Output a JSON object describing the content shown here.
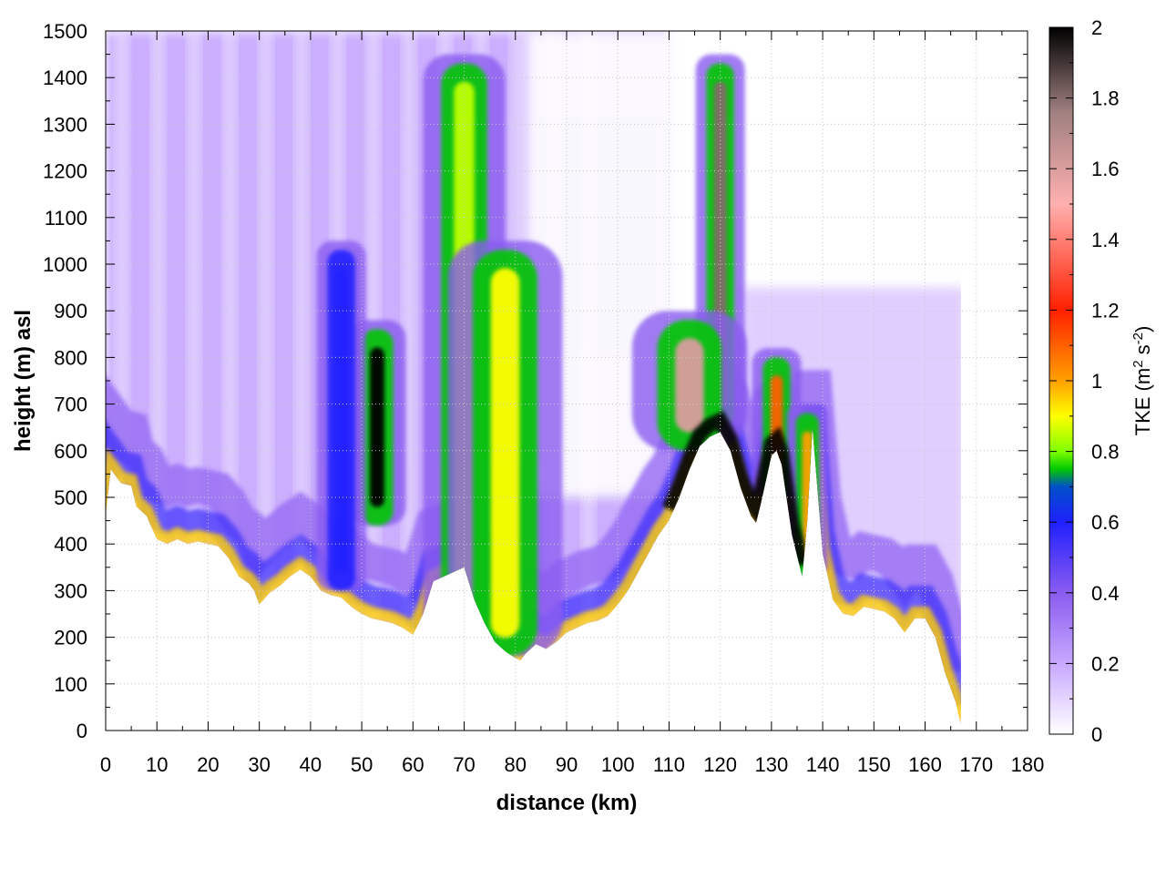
{
  "chart_data": {
    "type": "heatmap",
    "title": "",
    "xlabel": "distance (km)",
    "ylabel": "height (m) asl",
    "xlim": [
      0,
      180
    ],
    "ylim": [
      0,
      1500
    ],
    "xticks": [
      "0",
      "10",
      "20",
      "30",
      "40",
      "50",
      "60",
      "70",
      "80",
      "90",
      "100",
      "110",
      "120",
      "130",
      "140",
      "150",
      "160",
      "170",
      "180"
    ],
    "yticks": [
      "0",
      "100",
      "200",
      "300",
      "400",
      "500",
      "600",
      "700",
      "800",
      "900",
      "1000",
      "1100",
      "1200",
      "1300",
      "1400",
      "1500"
    ],
    "grid": true,
    "colorbar": {
      "label": "TKE (m² s⁻²)",
      "label_main": "TKE (m",
      "label_sup1": "2",
      "label_mid": " s",
      "label_sup2": "-2",
      "label_end": ")",
      "range": [
        0,
        2
      ],
      "ticks": [
        "0",
        "0.2",
        "0.4",
        "0.6",
        "0.8",
        "1",
        "1.2",
        "1.4",
        "1.6",
        "1.8",
        "2"
      ],
      "colors": [
        "#ffffff",
        "#c8a8ff",
        "#8a5cf0",
        "#2020ff",
        "#0050c8",
        "#00c800",
        "#80ff00",
        "#ffff00",
        "#ffa000",
        "#ff2000",
        "#ffb0b0",
        "#a08080",
        "#000000"
      ],
      "color_stops": [
        0,
        0.1,
        0.2,
        0.3,
        0.35,
        0.375,
        0.4,
        0.45,
        0.5,
        0.6,
        0.75,
        0.88,
        1.0
      ]
    },
    "terrain": {
      "x": [
        0,
        1,
        3,
        5,
        6,
        8,
        10,
        12,
        14,
        16,
        18,
        20,
        22,
        24,
        26,
        28,
        29,
        30,
        32,
        34,
        36,
        38,
        40,
        42,
        44,
        46,
        48,
        50,
        52,
        54,
        56,
        58,
        60,
        62,
        64,
        66,
        68,
        70,
        72,
        74,
        76,
        78,
        80,
        81,
        82,
        84,
        86,
        88,
        90,
        92,
        94,
        96,
        98,
        100,
        102,
        104,
        106,
        108,
        110,
        112,
        114,
        116,
        118,
        120,
        122,
        124,
        126,
        127,
        128,
        130,
        131,
        132,
        134,
        136,
        137,
        138,
        140,
        142,
        144,
        146,
        148,
        150,
        152,
        154,
        156,
        158,
        160,
        162,
        164,
        166,
        167
      ],
      "height": [
        460,
        560,
        530,
        525,
        480,
        460,
        410,
        400,
        410,
        400,
        405,
        400,
        395,
        370,
        330,
        315,
        300,
        270,
        295,
        310,
        330,
        345,
        330,
        300,
        290,
        285,
        265,
        250,
        240,
        235,
        230,
        220,
        205,
        250,
        320,
        330,
        340,
        350,
        280,
        230,
        190,
        170,
        155,
        150,
        165,
        185,
        175,
        190,
        210,
        220,
        230,
        235,
        245,
        270,
        300,
        340,
        380,
        420,
        450,
        500,
        560,
        610,
        630,
        640,
        600,
        520,
        460,
        445,
        490,
        590,
        600,
        570,
        420,
        330,
        450,
        650,
        380,
        280,
        250,
        245,
        265,
        260,
        255,
        240,
        210,
        240,
        240,
        200,
        120,
        60,
        10
      ]
    },
    "hotspots": [
      {
        "x": 53,
        "ytop": 880,
        "ybottom": 440,
        "width": 3.5,
        "tke": 2.0
      },
      {
        "x": 70,
        "ytop": 1450,
        "ybottom": 200,
        "width": 5,
        "tke": 0.85
      },
      {
        "x": 78,
        "ytop": 1050,
        "ybottom": 160,
        "width": 7,
        "tke": 0.9
      },
      {
        "x": 46,
        "ytop": 1050,
        "ybottom": 300,
        "width": 3,
        "tke": 0.6
      },
      {
        "x": 120,
        "ytop": 1450,
        "ybottom": 650,
        "width": 3,
        "tke": 1.8
      },
      {
        "x": 114,
        "ytop": 900,
        "ybottom": 600,
        "width": 7,
        "tke": 1.6
      },
      {
        "x": 131,
        "ytop": 820,
        "ybottom": 500,
        "width": 3,
        "tke": 1.1
      },
      {
        "x": 137,
        "ytop": 700,
        "ybottom": 330,
        "width": 2.5,
        "tke": 1.0
      }
    ]
  }
}
